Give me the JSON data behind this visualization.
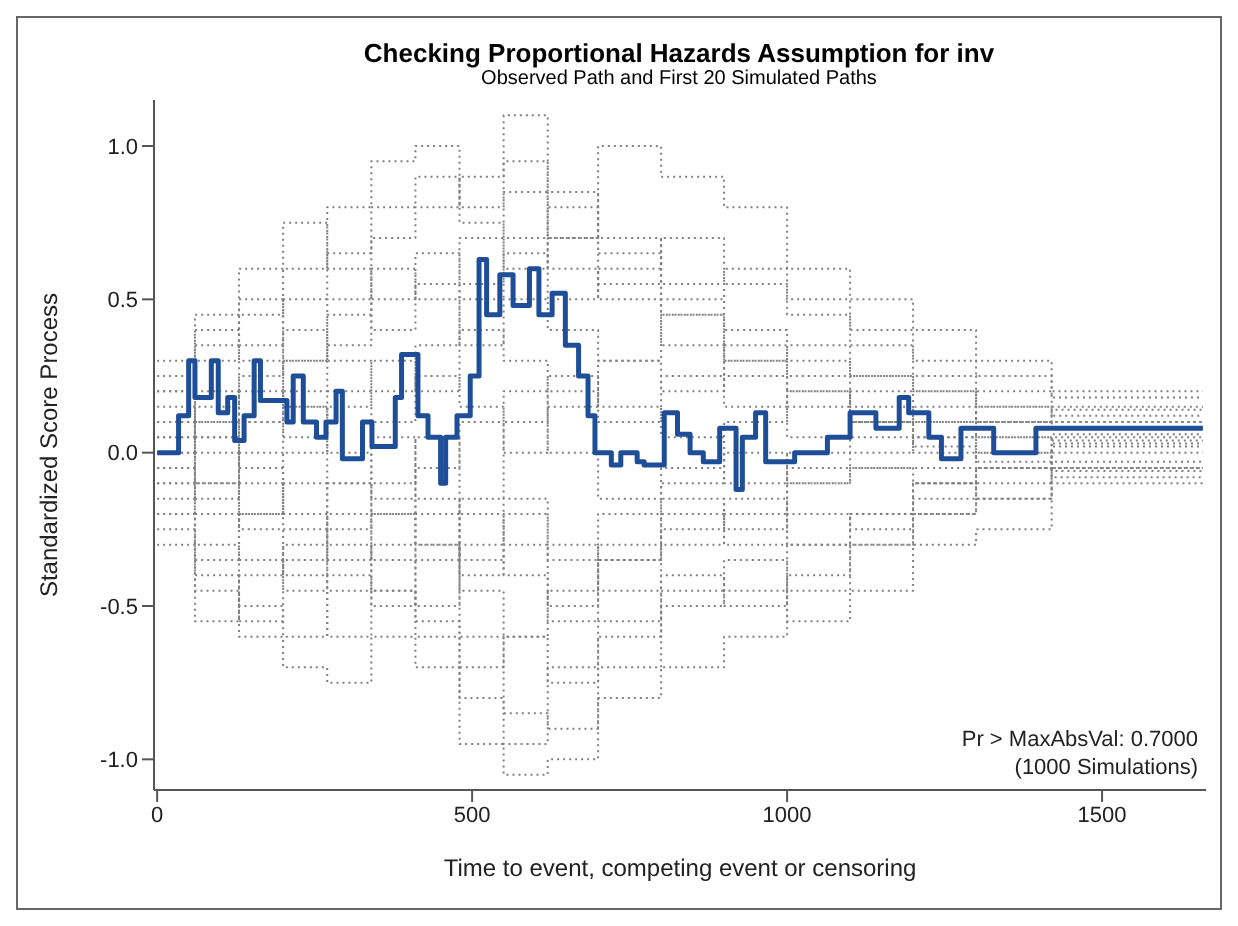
{
  "chart_data": {
    "type": "step",
    "title": "Checking Proportional Hazards Assumption for inv",
    "subtitle": "Observed Path and First 20 Simulated Paths",
    "xlabel": "Time to event, competing event or censoring",
    "ylabel": "Standardized Score Process",
    "annotations": [
      "Pr > MaxAbsVal: 0.7000",
      "(1000 Simulations)"
    ],
    "xlim": [
      -5,
      1665
    ],
    "xticks": [
      0,
      500,
      1000,
      1500
    ],
    "ylim": [
      -1.1,
      1.15
    ],
    "yticks": [
      {
        "value": -1,
        "label": "-1.0"
      },
      {
        "value": -0.5,
        "label": "-0.5"
      },
      {
        "value": 0,
        "label": "0.0"
      },
      {
        "value": 0.5,
        "label": "0.5"
      },
      {
        "value": 1,
        "label": "1.0"
      }
    ],
    "x": [
      0,
      60,
      130,
      200,
      270,
      340,
      410,
      480,
      550,
      620,
      700,
      800,
      900,
      1000,
      1100,
      1200,
      1300,
      1420,
      1660
    ],
    "series": [
      {
        "color": "#808080",
        "line_style": "dotted",
        "values": [
          0.1,
          0.3,
          0.45,
          0.6,
          0.8,
          0.95,
          1.0,
          0.8,
          1.1,
          0.85,
          0.7,
          0.55,
          0.4,
          0.3,
          0.25,
          0.2,
          0.15,
          0.12,
          0.12
        ]
      },
      {
        "color": "#808080",
        "line_style": "dotted",
        "values": [
          -0.2,
          -0.45,
          -0.6,
          -0.7,
          -0.75,
          -0.6,
          -0.7,
          -0.95,
          -1.05,
          -1.0,
          -0.8,
          -0.7,
          -0.6,
          -0.45,
          -0.3,
          -0.2,
          -0.1,
          -0.05,
          -0.05
        ]
      },
      {
        "color": "#808080",
        "line_style": "dotted",
        "values": [
          0.2,
          0.35,
          0.5,
          0.3,
          0.5,
          0.7,
          0.8,
          0.9,
          0.95,
          0.7,
          1.0,
          0.9,
          0.8,
          0.6,
          0.5,
          0.4,
          0.3,
          0.2,
          0.2
        ]
      },
      {
        "color": "#808080",
        "line_style": "dotted",
        "values": [
          -0.1,
          -0.3,
          -0.5,
          -0.6,
          -0.4,
          -0.5,
          -0.3,
          -0.6,
          -0.85,
          -0.9,
          -0.7,
          -0.5,
          -0.35,
          -0.55,
          -0.45,
          -0.3,
          -0.25,
          -0.1,
          -0.1
        ]
      },
      {
        "color": "#808080",
        "line_style": "dotted",
        "values": [
          0.05,
          0.2,
          0.1,
          0.3,
          0.45,
          0.6,
          0.5,
          0.7,
          0.85,
          0.6,
          0.5,
          0.45,
          0.3,
          0.2,
          0.1,
          0.05,
          0.0,
          0.05,
          0.05
        ]
      },
      {
        "color": "#808080",
        "line_style": "dotted",
        "values": [
          -0.05,
          -0.2,
          -0.35,
          -0.45,
          -0.6,
          -0.45,
          -0.55,
          -0.7,
          -0.6,
          -0.75,
          -0.55,
          -0.4,
          -0.45,
          -0.3,
          -0.2,
          -0.15,
          -0.05,
          0.0,
          0.0
        ]
      },
      {
        "color": "#808080",
        "line_style": "dotted",
        "values": [
          0.3,
          0.45,
          0.6,
          0.75,
          0.6,
          0.4,
          0.55,
          0.35,
          0.5,
          0.4,
          0.3,
          0.2,
          0.35,
          0.25,
          0.15,
          0.1,
          0.2,
          0.15,
          0.15
        ]
      },
      {
        "color": "#808080",
        "line_style": "dotted",
        "values": [
          -0.3,
          -0.55,
          -0.4,
          -0.3,
          -0.45,
          -0.3,
          -0.2,
          -0.4,
          -0.3,
          -0.5,
          -0.35,
          -0.2,
          -0.3,
          -0.2,
          -0.25,
          -0.1,
          -0.05,
          -0.08,
          -0.08
        ]
      },
      {
        "color": "#808080",
        "line_style": "dotted",
        "values": [
          0.0,
          0.1,
          0.25,
          0.4,
          0.3,
          0.2,
          0.35,
          0.5,
          0.65,
          0.5,
          0.6,
          0.7,
          0.55,
          0.45,
          0.35,
          0.25,
          0.15,
          0.1,
          0.1
        ]
      },
      {
        "color": "#808080",
        "line_style": "dotted",
        "values": [
          0.15,
          0.0,
          -0.2,
          -0.1,
          -0.3,
          -0.45,
          -0.6,
          -0.8,
          -0.95,
          -0.7,
          -0.6,
          -0.45,
          -0.5,
          -0.4,
          -0.3,
          -0.2,
          -0.15,
          -0.05,
          -0.05
        ]
      },
      {
        "color": "#808080",
        "line_style": "dotted",
        "values": [
          -0.15,
          -0.1,
          0.1,
          0.2,
          0.35,
          0.5,
          0.65,
          0.55,
          0.7,
          0.8,
          0.65,
          0.5,
          0.6,
          0.5,
          0.4,
          0.3,
          0.25,
          0.18,
          0.18
        ]
      },
      {
        "color": "#808080",
        "line_style": "dotted",
        "values": [
          0.1,
          -0.1,
          -0.25,
          -0.4,
          -0.25,
          -0.1,
          0.05,
          -0.2,
          -0.4,
          -0.55,
          -0.35,
          -0.25,
          -0.15,
          -0.3,
          -0.2,
          -0.1,
          -0.05,
          0.02,
          0.02
        ]
      },
      {
        "color": "#808080",
        "line_style": "dotted",
        "values": [
          -0.2,
          -0.35,
          -0.2,
          0.0,
          0.15,
          0.3,
          0.2,
          0.4,
          0.3,
          0.2,
          0.1,
          0.25,
          0.15,
          0.05,
          0.1,
          0.0,
          0.05,
          0.03,
          0.03
        ]
      },
      {
        "color": "#808080",
        "line_style": "dotted",
        "values": [
          0.25,
          0.4,
          0.3,
          0.15,
          0.0,
          -0.15,
          -0.3,
          -0.45,
          -0.6,
          -0.45,
          -0.3,
          -0.15,
          -0.25,
          -0.1,
          -0.05,
          -0.1,
          -0.15,
          -0.03,
          -0.03
        ]
      },
      {
        "color": "#808080",
        "line_style": "dotted",
        "values": [
          -0.25,
          -0.4,
          -0.55,
          -0.35,
          -0.2,
          -0.35,
          -0.5,
          -0.3,
          -0.15,
          -0.3,
          -0.45,
          -0.3,
          -0.2,
          -0.05,
          0.0,
          0.05,
          0.1,
          0.08,
          0.08
        ]
      },
      {
        "color": "#808080",
        "line_style": "dotted",
        "values": [
          0.05,
          0.15,
          0.35,
          0.5,
          0.65,
          0.8,
          0.9,
          0.75,
          0.6,
          0.7,
          0.55,
          0.35,
          0.25,
          0.15,
          0.2,
          0.1,
          0.05,
          0.06,
          0.06
        ]
      },
      {
        "color": "#808080",
        "line_style": "dotted",
        "values": [
          0.0,
          -0.15,
          0.0,
          0.15,
          -0.1,
          -0.2,
          -0.05,
          0.1,
          0.2,
          0.0,
          -0.15,
          -0.05,
          0.1,
          0.2,
          0.1,
          0.15,
          0.1,
          0.1,
          0.1
        ]
      },
      {
        "color": "#808080",
        "line_style": "dotted",
        "values": [
          -0.1,
          0.05,
          0.2,
          0.05,
          0.2,
          0.1,
          0.25,
          0.15,
          0.0,
          0.15,
          0.3,
          0.45,
          0.3,
          0.35,
          0.25,
          0.2,
          0.1,
          0.14,
          0.14
        ]
      },
      {
        "color": "#808080",
        "line_style": "dotted",
        "values": [
          0.2,
          0.05,
          -0.1,
          -0.25,
          -0.1,
          0.05,
          -0.15,
          -0.35,
          -0.2,
          -0.35,
          -0.2,
          -0.1,
          0.0,
          -0.1,
          -0.05,
          -0.05,
          0.0,
          -0.06,
          -0.06
        ]
      },
      {
        "color": "#808080",
        "line_style": "dotted",
        "values": [
          -0.05,
          0.1,
          -0.05,
          -0.2,
          -0.35,
          -0.2,
          -0.35,
          -0.15,
          0.1,
          0.25,
          0.15,
          0.05,
          -0.1,
          0.0,
          0.05,
          0.02,
          -0.03,
          0.04,
          0.04
        ]
      },
      {
        "color": "#1f4e99",
        "line_style": "solid",
        "x": [
          0,
          34,
          50,
          60,
          86,
          97,
          112,
          123,
          138,
          154,
          164,
          206,
          216,
          232,
          253,
          268,
          284,
          294,
          326,
          341,
          378,
          388,
          414,
          430,
          450,
          458,
          476,
          497,
          511,
          523,
          544,
          565,
          591,
          606,
          627,
          648,
          669,
          684,
          695,
          721,
          736,
          762,
          773,
          805,
          826,
          846,
          867,
          893,
          919,
          929,
          950,
          966,
          1012,
          1064,
          1100,
          1141,
          1178,
          1193,
          1225,
          1245,
          1276,
          1328,
          1395,
          1660
        ],
        "values": [
          0.0,
          0.12,
          0.3,
          0.18,
          0.3,
          0.13,
          0.18,
          0.04,
          0.12,
          0.3,
          0.17,
          0.1,
          0.25,
          0.1,
          0.05,
          0.1,
          0.2,
          -0.02,
          0.1,
          0.02,
          0.18,
          0.32,
          0.12,
          0.05,
          -0.1,
          0.05,
          0.12,
          0.25,
          0.63,
          0.45,
          0.58,
          0.48,
          0.6,
          0.45,
          0.52,
          0.35,
          0.25,
          0.12,
          0.0,
          -0.04,
          0.0,
          -0.03,
          -0.04,
          0.13,
          0.06,
          0.0,
          -0.03,
          0.08,
          -0.12,
          0.05,
          0.13,
          -0.03,
          0.0,
          0.05,
          0.13,
          0.08,
          0.18,
          0.13,
          0.05,
          -0.02,
          0.08,
          0.0,
          0.08,
          0.08
        ]
      }
    ]
  }
}
